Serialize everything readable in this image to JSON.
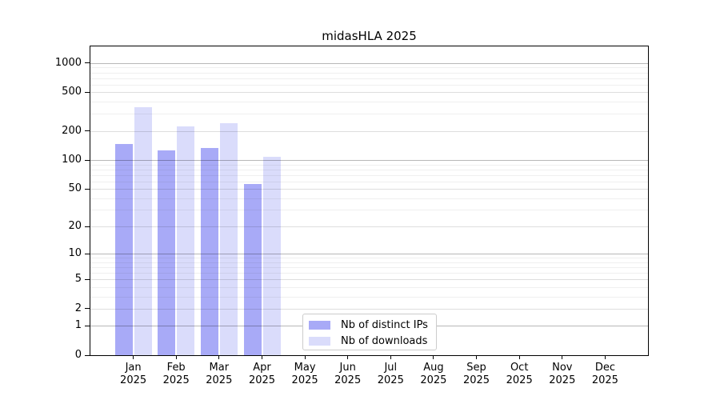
{
  "chart_data": {
    "type": "bar",
    "title": "midasHLA 2025",
    "categories": [
      "Jan",
      "Feb",
      "Mar",
      "Apr",
      "May",
      "Jun",
      "Jul",
      "Aug",
      "Sep",
      "Oct",
      "Nov",
      "Dec"
    ],
    "category_year": "2025",
    "series": [
      {
        "name": "Nb of distinct IPs",
        "color": "#a8aaf7",
        "values": [
          146,
          127,
          132,
          56,
          0,
          0,
          0,
          0,
          0,
          0,
          0,
          0
        ]
      },
      {
        "name": "Nb of downloads",
        "color": "#dadcfb",
        "values": [
          350,
          221,
          238,
          108,
          0,
          0,
          0,
          0,
          0,
          0,
          0,
          0
        ]
      }
    ],
    "scale": "log1p",
    "ylim": [
      0,
      1480
    ],
    "yticks": [
      0,
      1,
      2,
      5,
      10,
      20,
      50,
      100,
      200,
      500,
      1000
    ],
    "decade_gridlines": [
      1,
      10,
      100,
      1000
    ],
    "minor_gridlines": [
      3,
      4,
      6,
      7,
      8,
      9,
      30,
      40,
      60,
      70,
      80,
      90,
      300,
      400,
      600,
      700,
      800,
      900
    ],
    "grid": true,
    "legend_position": "inside-bottom-center",
    "xlabel": "",
    "ylabel": ""
  },
  "colors": {
    "background": "#ffffff",
    "axis": "#000000",
    "legend_border": "#cccccc"
  }
}
